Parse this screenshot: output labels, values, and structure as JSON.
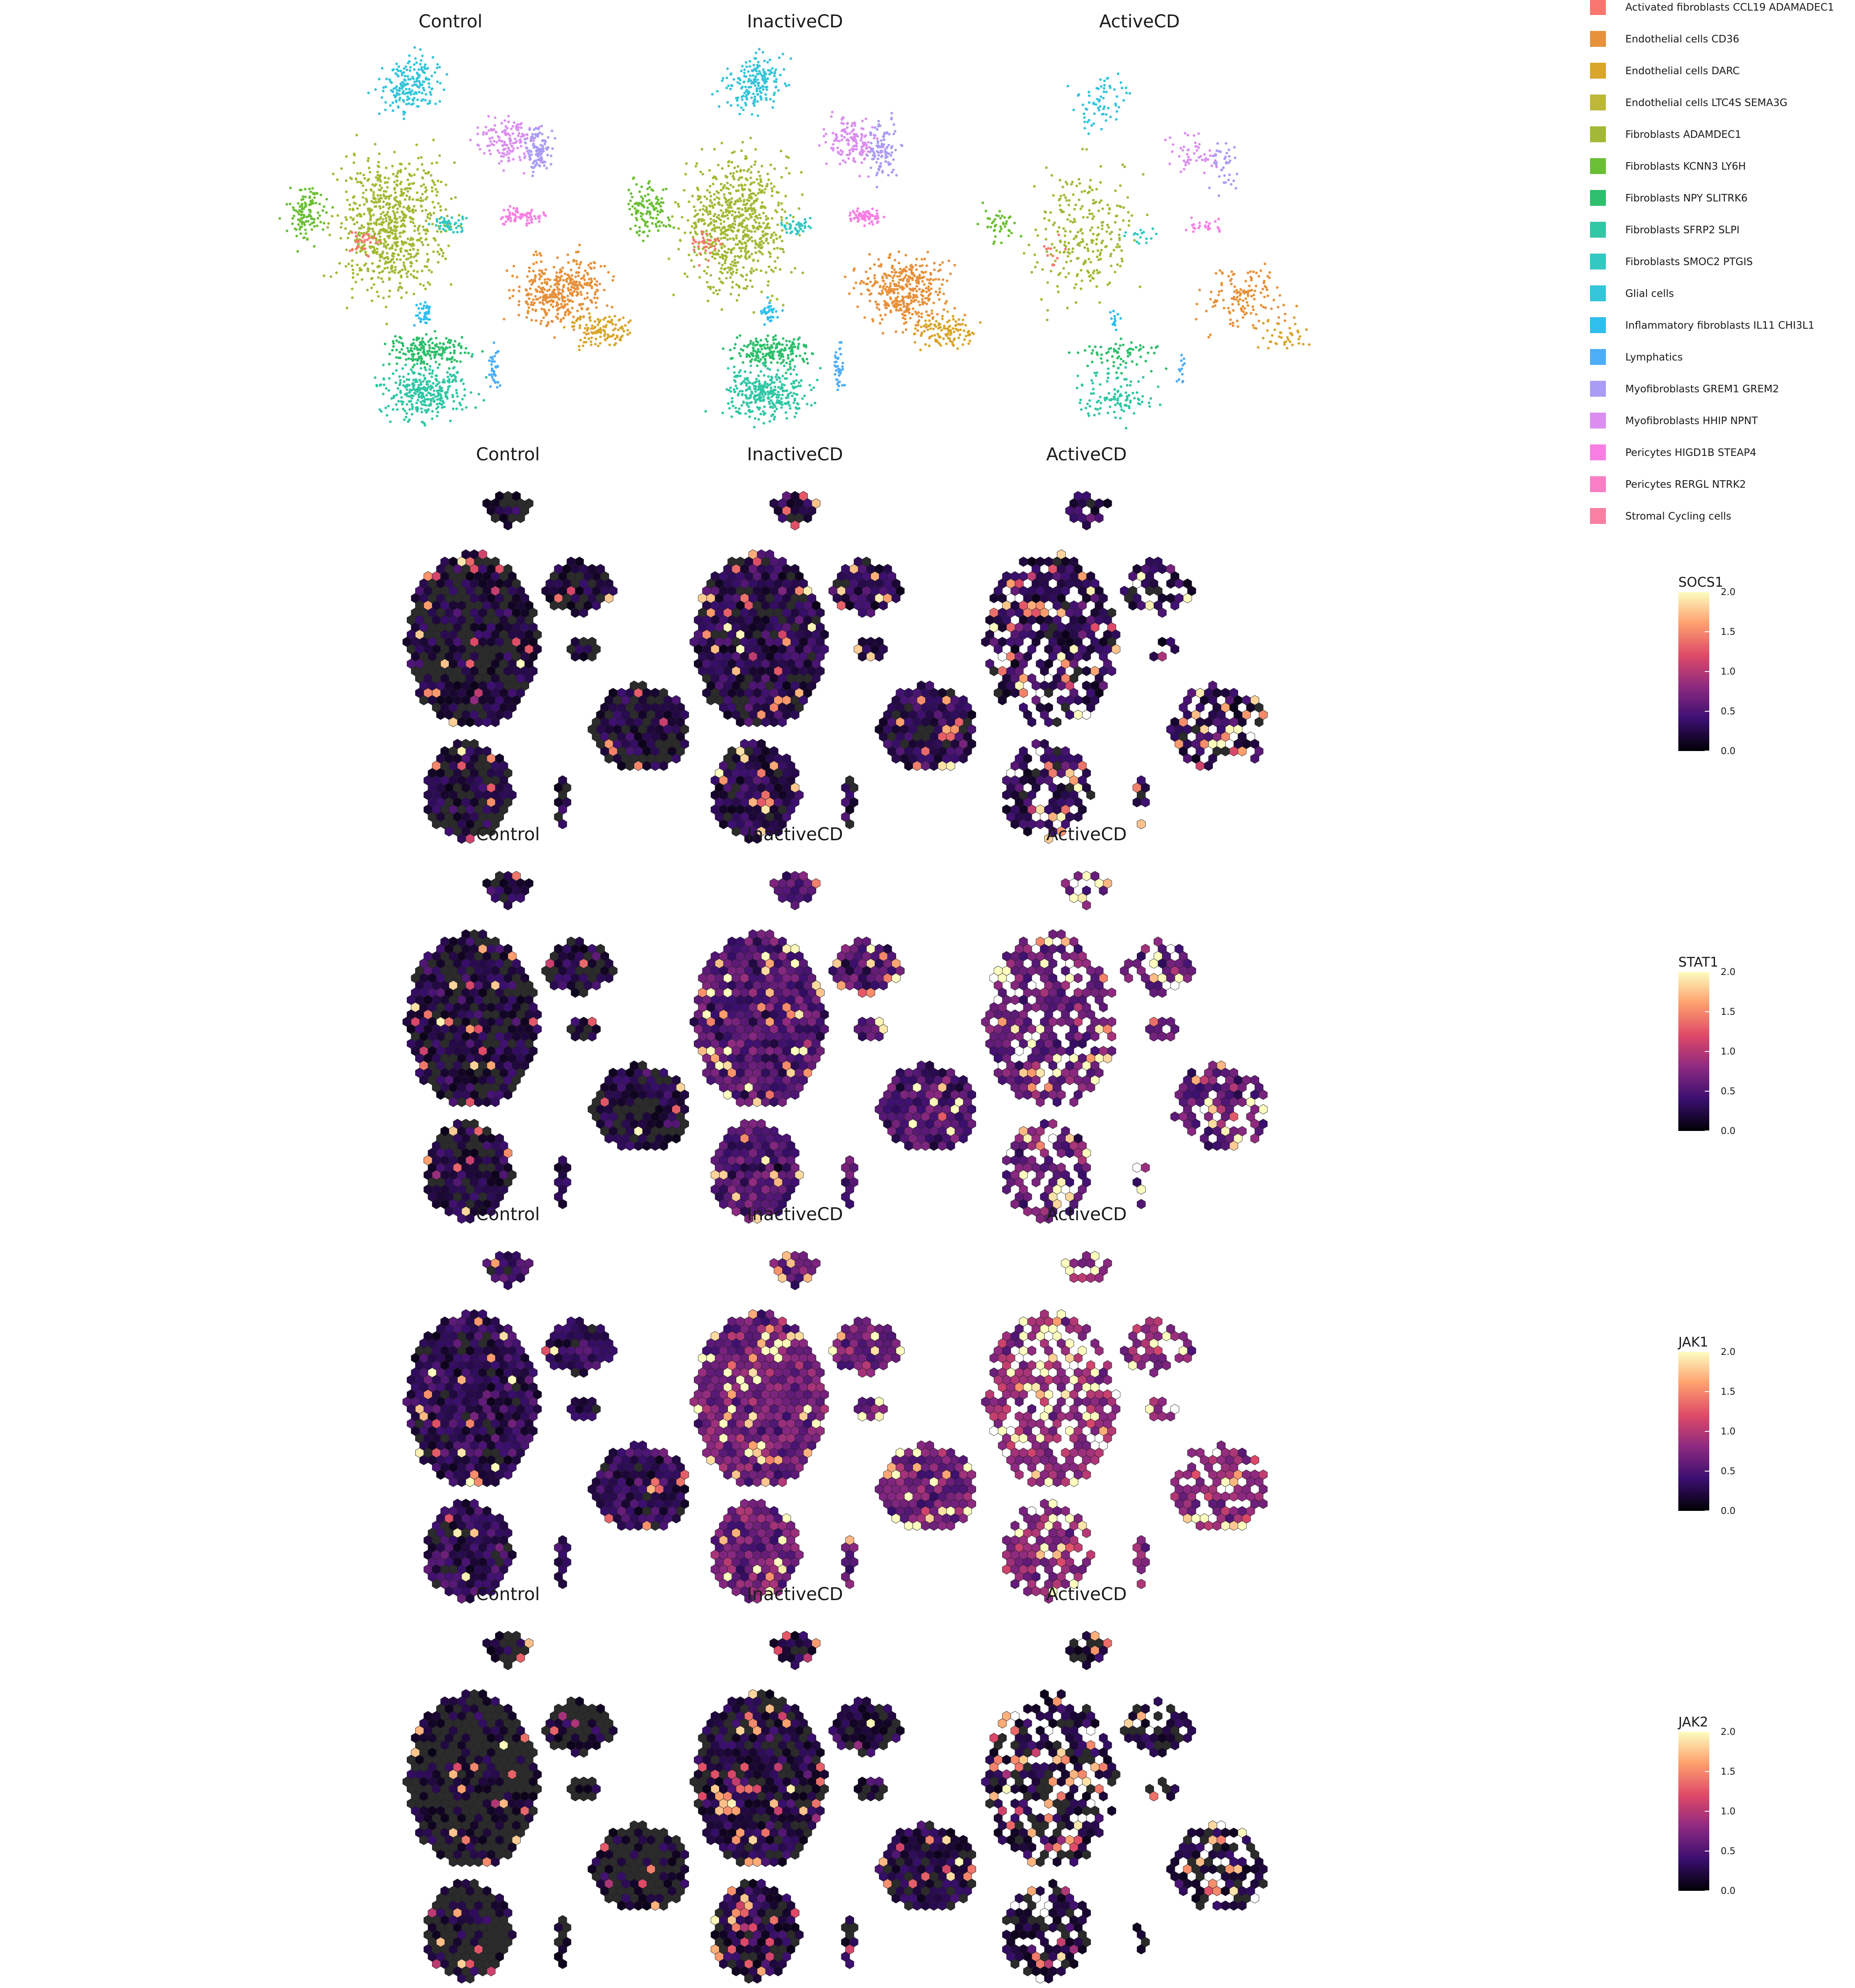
{
  "chart_data": [
    {
      "type": "scatter",
      "panels": [
        "Control",
        "InactiveCD",
        "ActiveCD"
      ],
      "legend_placement": "right",
      "grid": false,
      "legend": [
        {
          "label": "Activated fibroblasts CCL19 ADAMADEC1",
          "color": "#F8766D"
        },
        {
          "label": "Endothelial cells CD36",
          "color": "#E7913A"
        },
        {
          "label": "Endothelial cells DARC",
          "color": "#D9A52A"
        },
        {
          "label": "Endothelial cells LTC4S SEMA3G",
          "color": "#BDB83A"
        },
        {
          "label": "Fibroblasts ADAMDEC1",
          "color": "#A3B935"
        },
        {
          "label": "Fibroblasts KCNN3 LY6H",
          "color": "#6BBF35"
        },
        {
          "label": "Fibroblasts NPY SLITRK6",
          "color": "#2EBF6C"
        },
        {
          "label": "Fibroblasts SFRP2 SLPI",
          "color": "#31C7A5"
        },
        {
          "label": "Fibroblasts SMOC2 PTGIS",
          "color": "#33C9C2"
        },
        {
          "label": "Glial cells",
          "color": "#35C5DA"
        },
        {
          "label": "Inflammatory fibroblasts IL11 CHI3L1",
          "color": "#2FBEEE"
        },
        {
          "label": "Lymphatics",
          "color": "#4DAEF8"
        },
        {
          "label": "Myofibroblasts GREM1 GREM2",
          "color": "#A99CF5"
        },
        {
          "label": "Myofibroblasts HHIP NPNT",
          "color": "#DB8EF0"
        },
        {
          "label": "Pericytes HIGD1B STEAP4",
          "color": "#F77FE3"
        },
        {
          "label": "Pericytes RERGL NTRK2",
          "color": "#FA7EC5"
        },
        {
          "label": "Stromal Cycling cells",
          "color": "#F97FA3"
        }
      ]
    },
    {
      "type": "heatmap",
      "gene": "SOCS1",
      "panels": [
        "Control",
        "InactiveCD",
        "ActiveCD"
      ],
      "color_range": [
        0.0,
        2.0
      ],
      "colorbar_ticks": [
        "2.0",
        "1.5",
        "1.0",
        "0.5",
        "0.0"
      ]
    },
    {
      "type": "heatmap",
      "gene": "STAT1",
      "panels": [
        "Control",
        "InactiveCD",
        "ActiveCD"
      ],
      "color_range": [
        0.0,
        2.0
      ],
      "colorbar_ticks": [
        "2.0",
        "1.5",
        "1.0",
        "0.5",
        "0.0"
      ]
    },
    {
      "type": "heatmap",
      "gene": "JAK1",
      "panels": [
        "Control",
        "InactiveCD",
        "ActiveCD"
      ],
      "color_range": [
        0.0,
        2.0
      ],
      "colorbar_ticks": [
        "2.0",
        "1.5",
        "1.0",
        "0.5",
        "0.0"
      ]
    },
    {
      "type": "heatmap",
      "gene": "JAK2",
      "panels": [
        "Control",
        "InactiveCD",
        "ActiveCD"
      ],
      "color_range": [
        0.0,
        2.0
      ],
      "colorbar_ticks": [
        "2.0",
        "1.5",
        "1.0",
        "0.5",
        "0.0"
      ]
    }
  ],
  "colors": {
    "magma": [
      "#000004",
      "#3B0F70",
      "#8C2981",
      "#DE4968",
      "#FE9F6D",
      "#FCFDBF"
    ],
    "hex_dark": "#2b2b2b"
  }
}
